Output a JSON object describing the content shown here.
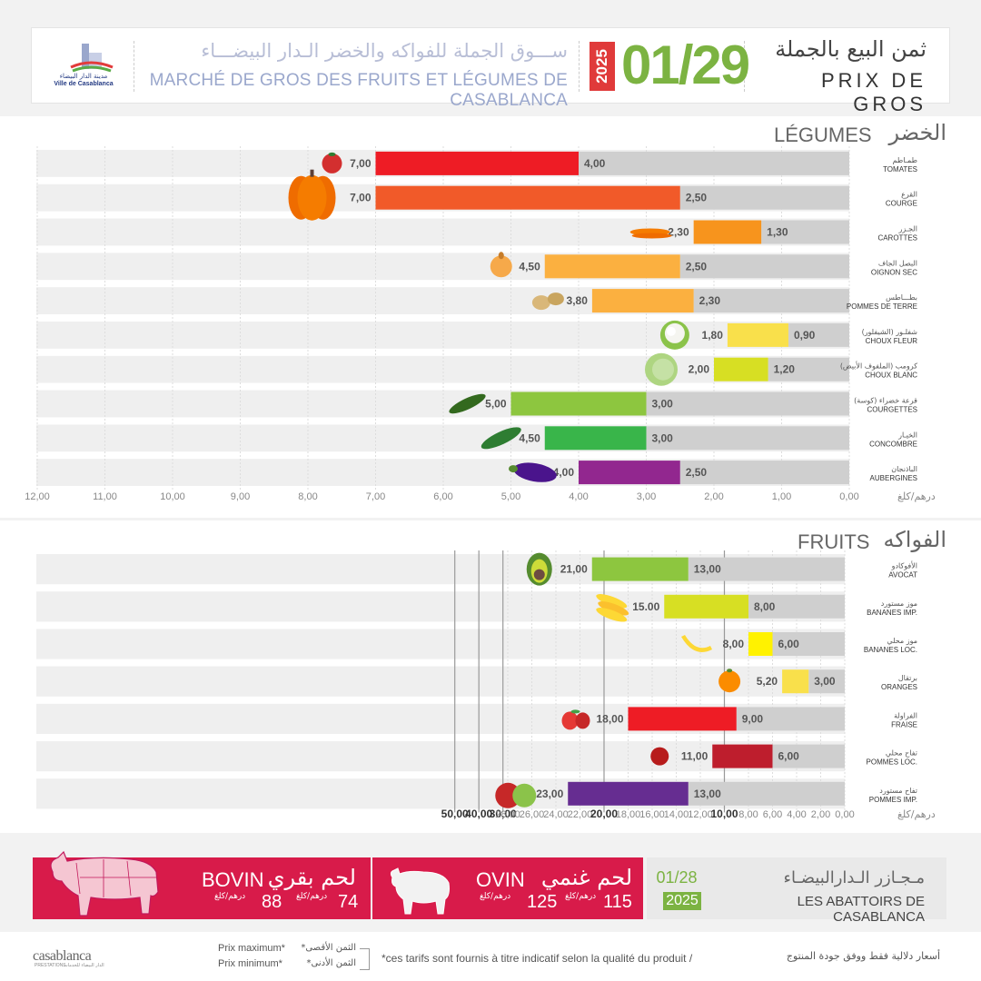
{
  "header": {
    "logo_text_ar": "مدينة الدار البيضاء",
    "logo_text_fr": "Ville de Casablanca",
    "title_ar": "ســـوق الجملة للفواكه والخضر الـدار البيضـــاء",
    "title_fr": "MARCHÉ DE GROS DES FRUITS ET LÉGUMES DE CASABLANCA",
    "year": "2025",
    "date": "01/29",
    "price_title_ar": "ثمن البيع بالجملة",
    "price_title_fr": "PRIX DE GROS"
  },
  "colors": {
    "red": "#ee1c25",
    "orange_dark": "#f15a29",
    "orange": "#f7941d",
    "orange_light": "#fbb040",
    "yellow": "#f9e04b",
    "lime": "#d7df23",
    "green_light": "#8dc63f",
    "green": "#39b54a",
    "purple": "#92278f",
    "gray_bar": "#cfcfcf",
    "crimson": "#be1e2d",
    "violet": "#662d91",
    "avocado": "#8dc63f",
    "banana_imp": "#d7df23",
    "banana_loc": "#fff200",
    "orange_fruit": "#f9e04b"
  },
  "chart_data": [
    {
      "type": "bar",
      "orientation": "horizontal",
      "title_ar": "الخضر",
      "title_fr": "LÉGUMES",
      "unit": "درهم/كلغ",
      "xlim": [
        0,
        12
      ],
      "x_ticks": [
        "12,00",
        "11,00",
        "10,00",
        "9,00",
        "8,00",
        "7,00",
        "6,00",
        "5,00",
        "4,00",
        "3,00",
        "2,00",
        "1,00",
        "0,00"
      ],
      "categories": [
        {
          "ar": "طمـاطم",
          "fr": "TOMATES",
          "max": 7.0,
          "min": 4.0,
          "max_label": "7,00",
          "min_label": "4,00",
          "color": "#ee1c25",
          "icon": "tomato-icon"
        },
        {
          "ar": "القرع",
          "fr": "COURGE",
          "max": 7.0,
          "min": 2.5,
          "max_label": "7,00",
          "min_label": "2,50",
          "color": "#f15a29",
          "icon": "pumpkin-icon"
        },
        {
          "ar": "الجـزر",
          "fr": "CAROTTES",
          "max": 2.3,
          "min": 1.3,
          "max_label": "2,30",
          "min_label": "1,30",
          "color": "#f7941d",
          "icon": "carrot-icon"
        },
        {
          "ar": "البصل الجاف",
          "fr": "OIGNON SEC",
          "max": 4.5,
          "min": 2.5,
          "max_label": "4,50",
          "min_label": "2,50",
          "color": "#fbb040",
          "icon": "onion-icon"
        },
        {
          "ar": "بطـــاطس",
          "fr": "POMMES DE TERRE",
          "max": 3.8,
          "min": 2.3,
          "max_label": "3,80",
          "min_label": "2,30",
          "color": "#fbb040",
          "icon": "potato-icon"
        },
        {
          "ar": "شفلـور (الشيفلور)",
          "fr": "CHOUX FLEUR",
          "max": 1.8,
          "min": 0.9,
          "max_label": "1,80",
          "min_label": "0,90",
          "color": "#f9e04b",
          "icon": "cauliflower-icon"
        },
        {
          "ar": "كرومب (الملفوف الأبيض)",
          "fr": "CHOUX BLANC",
          "max": 2.0,
          "min": 1.2,
          "max_label": "2,00",
          "min_label": "1,20",
          "color": "#d7df23",
          "icon": "cabbage-icon"
        },
        {
          "ar": "قرعة خضراء (كوسة)",
          "fr": "COURGETTES",
          "max": 5.0,
          "min": 3.0,
          "max_label": "5,00",
          "min_label": "3,00",
          "color": "#8dc63f",
          "icon": "zucchini-icon"
        },
        {
          "ar": "الخيـار",
          "fr": "CONCOMBRE",
          "max": 4.5,
          "min": 3.0,
          "max_label": "4,50",
          "min_label": "3,00",
          "color": "#39b54a",
          "icon": "cucumber-icon"
        },
        {
          "ar": "الباذنجان",
          "fr": "AUBERGINES",
          "max": 4.0,
          "min": 2.5,
          "max_label": "4,00",
          "min_label": "2,50",
          "color": "#92278f",
          "icon": "eggplant-icon"
        }
      ]
    },
    {
      "type": "bar",
      "orientation": "horizontal",
      "title_ar": "الفواكه",
      "title_fr": "FRUITS",
      "unit": "درهم/كلغ",
      "xlim": [
        0,
        50
      ],
      "x_ticks": [
        {
          "value": 50,
          "label": "50,00",
          "bold": true
        },
        {
          "value": 40,
          "label": "40,00",
          "bold": true
        },
        {
          "value": 30,
          "label": "30,00",
          "bold": true
        },
        {
          "value": 28,
          "label": "28,00"
        },
        {
          "value": 26,
          "label": "26,00"
        },
        {
          "value": 24,
          "label": "24,00"
        },
        {
          "value": 22,
          "label": "22,00"
        },
        {
          "value": 20,
          "label": "20,00",
          "bold": true
        },
        {
          "value": 18,
          "label": "18,00"
        },
        {
          "value": 16,
          "label": "16,00"
        },
        {
          "value": 14,
          "label": "14,00"
        },
        {
          "value": 12,
          "label": "12,00"
        },
        {
          "value": 10,
          "label": "10,00",
          "bold": true
        },
        {
          "value": 8,
          "label": "8,00"
        },
        {
          "value": 6,
          "label": "6,00"
        },
        {
          "value": 4,
          "label": "4,00"
        },
        {
          "value": 2,
          "label": "2,00"
        },
        {
          "value": 0,
          "label": "0,00"
        }
      ],
      "categories": [
        {
          "ar": "الأفوكادو",
          "fr": "AVOCAT",
          "max": 21.0,
          "min": 13.0,
          "max_label": "21,00",
          "min_label": "13,00",
          "color": "#8dc63f",
          "icon": "avocado-icon"
        },
        {
          "ar": "موز مستورد",
          "fr": "BANANES IMP.",
          "max": 15.0,
          "min": 8.0,
          "max_label": "15.00",
          "min_label": "8,00",
          "color": "#d7df23",
          "icon": "banana-bunch-icon"
        },
        {
          "ar": "موز محلي",
          "fr": "BANANES LOC.",
          "max": 8.0,
          "min": 6.0,
          "max_label": "8,00",
          "min_label": "6,00",
          "color": "#fff200",
          "icon": "banana-icon"
        },
        {
          "ar": "برتقال",
          "fr": "ORANGES",
          "max": 5.2,
          "min": 3.0,
          "max_label": "5,20",
          "min_label": "3,00",
          "color": "#f9e04b",
          "icon": "orange-icon"
        },
        {
          "ar": "الفراولة",
          "fr": "FRAISE",
          "max": 18.0,
          "min": 9.0,
          "max_label": "18,00",
          "min_label": "9,00",
          "color": "#ee1c25",
          "icon": "strawberry-icon"
        },
        {
          "ar": "تفاح محلي",
          "fr": "POMMES LOC.",
          "max": 11.0,
          "min": 6.0,
          "max_label": "11,00",
          "min_label": "6,00",
          "color": "#be1e2d",
          "icon": "apple-icon"
        },
        {
          "ar": "تفاح مستورد",
          "fr": "POMMES IMP.",
          "max": 23.0,
          "min": 13.0,
          "max_label": "23,00",
          "min_label": "13,00",
          "color": "#662d91",
          "icon": "apples-icon"
        }
      ]
    }
  ],
  "abattoirs": {
    "bovin": {
      "fr": "BOVIN",
      "ar": "لحم بقري",
      "price_max": "74",
      "price_min": "88",
      "unit": "درهم/كلغ"
    },
    "ovin": {
      "fr": "OVIN",
      "ar": "لحم غنمي",
      "price_max": "115",
      "price_min": "125",
      "unit": "درهم/كلغ"
    },
    "date": "01/28",
    "year": "2025",
    "title_ar": "مـجـازر الـدارالبيضـاء",
    "title_fr": "LES ABATTOIRS DE CASABLANCA"
  },
  "footer": {
    "brand": "casablanca",
    "brand_sub": "PRESTATIONS",
    "brand_sub_ar": "الدار البيضاء للخدمات",
    "legend_max_fr": "Prix maximum*",
    "legend_min_fr": "Prix minimum*",
    "legend_max_ar": "*الثمن الأقصى",
    "legend_min_ar": "*الثمن الأدنى",
    "disclaimer_fr": "*ces tarifs sont fournis à titre indicatif selon la qualité du produit /",
    "disclaimer_ar": "أسعار دلالية فقط ووفق جودة المنتوج"
  }
}
